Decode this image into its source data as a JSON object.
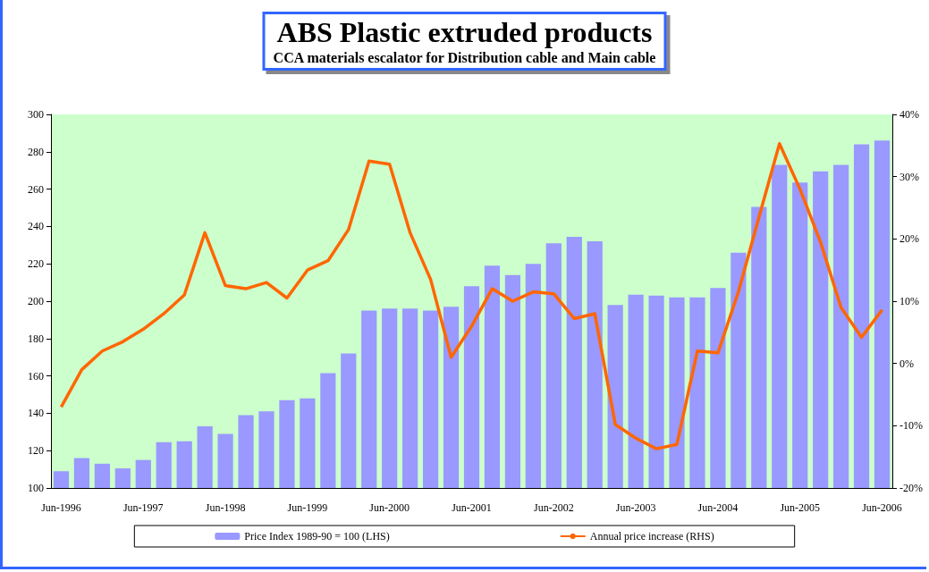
{
  "chart_data": {
    "type": "bar",
    "title": "ABS Plastic extruded products",
    "subtitle": "CCA materials escalator for Distribution cable and Main cable",
    "categories": [
      "Jun-1996",
      null,
      null,
      null,
      "Jun-1997",
      null,
      null,
      null,
      "Jun-1998",
      null,
      null,
      null,
      "Jun-1999",
      null,
      null,
      null,
      "Jun-2000",
      null,
      null,
      null,
      "Jun-2001",
      null,
      null,
      null,
      "Jun-2002",
      null,
      null,
      null,
      "Jun-2003",
      null,
      null,
      null,
      "Jun-2004",
      null,
      null,
      null,
      "Jun-2005",
      null,
      null,
      null,
      "Jun-2006"
    ],
    "series": [
      {
        "name": "Price Index 1989-90 = 100 (LHS)",
        "color": "#9999ff",
        "values": [
          109,
          116,
          113,
          110.5,
          115,
          124.5,
          125,
          133,
          129,
          139,
          141,
          147,
          148,
          161.5,
          172,
          195,
          196,
          196,
          195,
          197,
          208,
          219,
          214,
          220,
          231,
          234.5,
          232,
          198,
          203.5,
          203,
          202,
          202,
          207,
          226,
          250.5,
          273,
          263.5,
          269.5,
          273,
          284,
          286
        ]
      },
      {
        "name": "Annual price increase (RHS)",
        "type": "line",
        "axis": "y2",
        "color": "#ff6600",
        "values": [
          -7,
          -1,
          2,
          3.5,
          5.5,
          8,
          11,
          21,
          12.5,
          12,
          13,
          10.5,
          15,
          16.5,
          21.5,
          32.5,
          32,
          21,
          13.5,
          1,
          6,
          12,
          10,
          11.5,
          11.2,
          7.2,
          8,
          -9.8,
          -12,
          -13.7,
          -13,
          2,
          1.7,
          11.5,
          23.5,
          35.3,
          28,
          19.5,
          9,
          4.2,
          8.6
        ]
      }
    ],
    "ylim": [
      100,
      300
    ],
    "yticks": [
      100,
      120,
      140,
      160,
      180,
      200,
      220,
      240,
      260,
      280,
      300
    ],
    "y2lim": [
      -20,
      40
    ],
    "y2ticks": [
      {
        "value": -20,
        "label": "-20%"
      },
      {
        "value": -10,
        "label": "-10%"
      },
      {
        "value": 0,
        "label": "0%"
      },
      {
        "value": 10,
        "label": "10%"
      },
      {
        "value": 20,
        "label": "20%"
      },
      {
        "value": 30,
        "label": "30%"
      },
      {
        "value": 40,
        "label": "40%"
      }
    ],
    "grid": false,
    "legend": "bottom",
    "marker": "none",
    "line_style": "solid"
  }
}
